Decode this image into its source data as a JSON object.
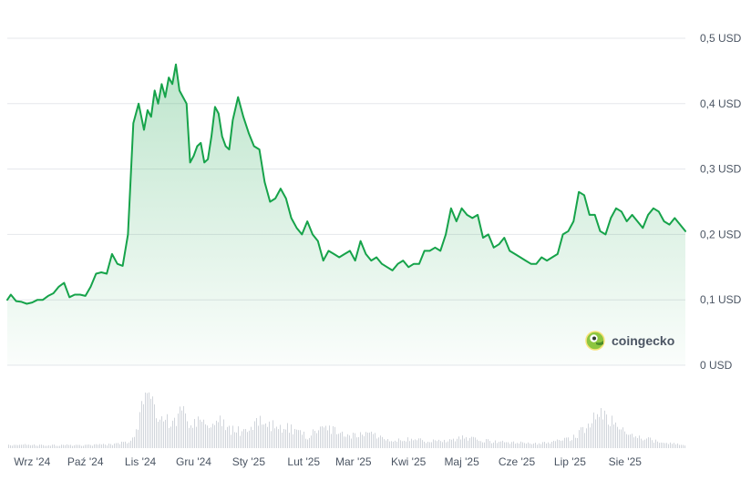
{
  "chart_data": {
    "type": "area",
    "currency_unit": "USD",
    "y_tick_labels": [
      "0 USD",
      "0,1 USD",
      "0,2 USD",
      "0,3 USD",
      "0,4 USD",
      "0,5 USD"
    ],
    "y_ticks": [
      0,
      0.1,
      0.2,
      0.3,
      0.4,
      0.5
    ],
    "ylim": [
      0,
      0.5
    ],
    "x_tick_labels": [
      "Wrz '24",
      "Paź '24",
      "Lis '24",
      "Gru '24",
      "Sty '25",
      "Lut '25",
      "Mar '25",
      "Kwi '25",
      "Maj '25",
      "Cze '25",
      "Lip '25",
      "Sie '25"
    ],
    "x_tick_dates": [
      "2024-09-01",
      "2024-10-01",
      "2024-11-01",
      "2024-12-01",
      "2025-01-01",
      "2025-02-01",
      "2025-03-01",
      "2025-04-01",
      "2025-05-01",
      "2025-06-01",
      "2025-07-01",
      "2025-08-01"
    ],
    "xlim": [
      "2024-08-18",
      "2025-09-04"
    ],
    "grid": "horizontal",
    "legend": "none",
    "colors": {
      "line": "#16a34a",
      "fill_top": "#16a34a",
      "grid": "#e5e7eb",
      "volume": "#d1d5db",
      "brand": "#8dc63f"
    },
    "series": [
      {
        "kind": "price",
        "x": [
          "2024-08-18",
          "2024-08-20",
          "2024-08-23",
          "2024-08-26",
          "2024-08-29",
          "2024-09-01",
          "2024-09-04",
          "2024-09-07",
          "2024-09-10",
          "2024-09-13",
          "2024-09-16",
          "2024-09-19",
          "2024-09-22",
          "2024-09-25",
          "2024-09-28",
          "2024-10-01",
          "2024-10-04",
          "2024-10-07",
          "2024-10-10",
          "2024-10-13",
          "2024-10-16",
          "2024-10-19",
          "2024-10-22",
          "2024-10-25",
          "2024-10-28",
          "2024-10-31",
          "2024-11-03",
          "2024-11-05",
          "2024-11-07",
          "2024-11-09",
          "2024-11-11",
          "2024-11-13",
          "2024-11-15",
          "2024-11-17",
          "2024-11-19",
          "2024-11-21",
          "2024-11-23",
          "2024-11-25",
          "2024-11-27",
          "2024-11-29",
          "2024-12-01",
          "2024-12-03",
          "2024-12-05",
          "2024-12-07",
          "2024-12-09",
          "2024-12-11",
          "2024-12-13",
          "2024-12-15",
          "2024-12-17",
          "2024-12-19",
          "2024-12-21",
          "2024-12-23",
          "2024-12-26",
          "2024-12-29",
          "2025-01-01",
          "2025-01-04",
          "2025-01-07",
          "2025-01-10",
          "2025-01-13",
          "2025-01-16",
          "2025-01-19",
          "2025-01-22",
          "2025-01-25",
          "2025-01-28",
          "2025-01-31",
          "2025-02-03",
          "2025-02-06",
          "2025-02-09",
          "2025-02-12",
          "2025-02-15",
          "2025-02-18",
          "2025-02-21",
          "2025-02-24",
          "2025-02-27",
          "2025-03-02",
          "2025-03-05",
          "2025-03-08",
          "2025-03-11",
          "2025-03-14",
          "2025-03-17",
          "2025-03-20",
          "2025-03-23",
          "2025-03-26",
          "2025-03-29",
          "2025-04-01",
          "2025-04-04",
          "2025-04-07",
          "2025-04-10",
          "2025-04-13",
          "2025-04-16",
          "2025-04-19",
          "2025-04-22",
          "2025-04-25",
          "2025-04-28",
          "2025-05-01",
          "2025-05-04",
          "2025-05-07",
          "2025-05-10",
          "2025-05-13",
          "2025-05-16",
          "2025-05-19",
          "2025-05-22",
          "2025-05-25",
          "2025-05-28",
          "2025-05-31",
          "2025-06-03",
          "2025-06-06",
          "2025-06-09",
          "2025-06-12",
          "2025-06-15",
          "2025-06-18",
          "2025-06-21",
          "2025-06-24",
          "2025-06-27",
          "2025-06-30",
          "2025-07-03",
          "2025-07-06",
          "2025-07-09",
          "2025-07-12",
          "2025-07-15",
          "2025-07-18",
          "2025-07-21",
          "2025-07-24",
          "2025-07-27",
          "2025-07-30",
          "2025-08-02",
          "2025-08-05",
          "2025-08-08",
          "2025-08-11",
          "2025-08-14",
          "2025-08-17",
          "2025-08-20",
          "2025-08-23",
          "2025-08-26",
          "2025-08-29",
          "2025-09-01",
          "2025-09-04"
        ],
        "values": [
          0.1,
          0.108,
          0.098,
          0.097,
          0.094,
          0.096,
          0.1,
          0.1,
          0.106,
          0.11,
          0.12,
          0.126,
          0.104,
          0.108,
          0.108,
          0.106,
          0.12,
          0.14,
          0.142,
          0.14,
          0.17,
          0.155,
          0.152,
          0.2,
          0.37,
          0.4,
          0.36,
          0.39,
          0.38,
          0.42,
          0.4,
          0.43,
          0.41,
          0.44,
          0.43,
          0.46,
          0.42,
          0.41,
          0.4,
          0.31,
          0.32,
          0.335,
          0.34,
          0.31,
          0.315,
          0.35,
          0.395,
          0.385,
          0.35,
          0.335,
          0.33,
          0.375,
          0.41,
          0.38,
          0.355,
          0.335,
          0.33,
          0.28,
          0.25,
          0.255,
          0.27,
          0.255,
          0.225,
          0.21,
          0.2,
          0.22,
          0.2,
          0.19,
          0.16,
          0.175,
          0.17,
          0.165,
          0.17,
          0.175,
          0.16,
          0.19,
          0.17,
          0.16,
          0.165,
          0.155,
          0.15,
          0.145,
          0.155,
          0.16,
          0.15,
          0.155,
          0.155,
          0.175,
          0.175,
          0.18,
          0.175,
          0.2,
          0.24,
          0.22,
          0.24,
          0.23,
          0.225,
          0.23,
          0.195,
          0.2,
          0.18,
          0.185,
          0.195,
          0.175,
          0.17,
          0.165,
          0.16,
          0.155,
          0.155,
          0.165,
          0.16,
          0.165,
          0.17,
          0.2,
          0.205,
          0.22,
          0.265,
          0.26,
          0.23,
          0.23,
          0.205,
          0.2,
          0.225,
          0.24,
          0.235,
          0.22,
          0.23,
          0.22,
          0.21,
          0.23,
          0.24,
          0.235,
          0.22,
          0.215,
          0.225,
          0.215,
          0.205
        ]
      },
      {
        "kind": "volume",
        "x": [
          "2024-08-18",
          "2024-09-01",
          "2024-09-15",
          "2024-10-01",
          "2024-10-15",
          "2024-10-25",
          "2024-10-29",
          "2024-11-01",
          "2024-11-05",
          "2024-11-10",
          "2024-11-13",
          "2024-11-16",
          "2024-11-19",
          "2024-11-24",
          "2024-11-29",
          "2024-12-05",
          "2024-12-10",
          "2024-12-16",
          "2024-12-22",
          "2024-12-29",
          "2025-01-07",
          "2025-01-15",
          "2025-01-25",
          "2025-02-03",
          "2025-02-10",
          "2025-02-18",
          "2025-02-25",
          "2025-03-03",
          "2025-03-10",
          "2025-03-20",
          "2025-04-01",
          "2025-04-10",
          "2025-04-20",
          "2025-05-01",
          "2025-05-10",
          "2025-05-20",
          "2025-06-01",
          "2025-06-15",
          "2025-07-01",
          "2025-07-10",
          "2025-07-15",
          "2025-07-19",
          "2025-07-23",
          "2025-07-28",
          "2025-08-05",
          "2025-08-15",
          "2025-08-25",
          "2025-09-04"
        ],
        "values": [
          0.06,
          0.05,
          0.05,
          0.05,
          0.06,
          0.1,
          0.28,
          0.6,
          1.0,
          0.55,
          0.5,
          0.48,
          0.38,
          0.65,
          0.4,
          0.45,
          0.35,
          0.5,
          0.3,
          0.28,
          0.45,
          0.38,
          0.32,
          0.2,
          0.35,
          0.3,
          0.18,
          0.22,
          0.25,
          0.14,
          0.16,
          0.12,
          0.12,
          0.18,
          0.14,
          0.1,
          0.09,
          0.08,
          0.15,
          0.35,
          0.5,
          0.55,
          0.48,
          0.32,
          0.22,
          0.14,
          0.08,
          0.05
        ]
      }
    ]
  },
  "brand": {
    "name": "coingecko",
    "logo_icon": "gecko-logo-icon"
  }
}
